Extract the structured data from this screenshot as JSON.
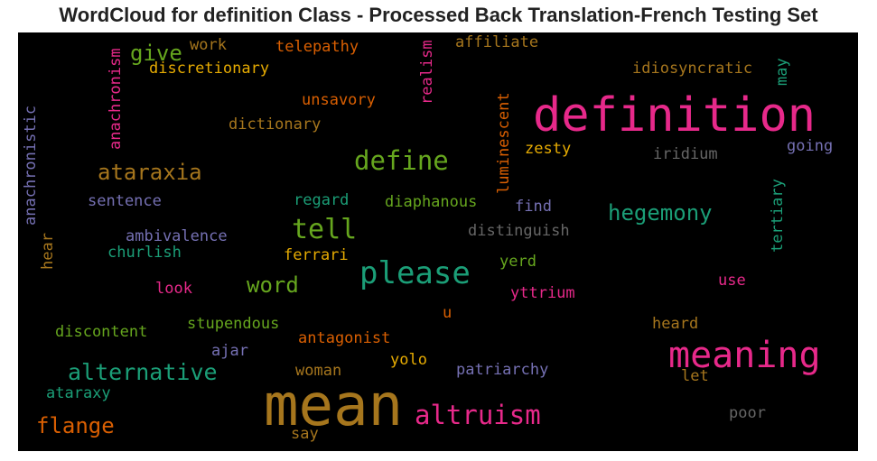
{
  "chart_data": {
    "type": "wordcloud",
    "title": "WordCloud for definition Class - Processed Back Translation-French Testing Set",
    "background": "#000000",
    "palette": "Dark2",
    "words": [
      {
        "text": "mean",
        "color": "#a6761d"
      },
      {
        "text": "definition",
        "color": "#e7298a"
      },
      {
        "text": "meaning",
        "color": "#e7298a"
      },
      {
        "text": "please",
        "color": "#1b9e77"
      },
      {
        "text": "tell",
        "color": "#66a61e"
      },
      {
        "text": "define",
        "color": "#66a61e"
      },
      {
        "text": "altruism",
        "color": "#e7298a"
      },
      {
        "text": "alternative",
        "color": "#1b9e77"
      },
      {
        "text": "ataraxia",
        "color": "#a6761d"
      },
      {
        "text": "hegemony",
        "color": "#1b9e77"
      },
      {
        "text": "flange",
        "color": "#d95f02"
      },
      {
        "text": "word",
        "color": "#66a61e"
      },
      {
        "text": "give",
        "color": "#66a61e"
      },
      {
        "text": "discretionary",
        "color": "#e6ab02"
      },
      {
        "text": "idiosyncratic",
        "color": "#a6761d"
      },
      {
        "text": "telepathy",
        "color": "#d95f02"
      },
      {
        "text": "affiliate",
        "color": "#a6761d"
      },
      {
        "text": "work",
        "color": "#a6761d"
      },
      {
        "text": "unsavory",
        "color": "#d95f02"
      },
      {
        "text": "dictionary",
        "color": "#a6761d"
      },
      {
        "text": "zesty",
        "color": "#e6ab02"
      },
      {
        "text": "iridium",
        "color": "#666666"
      },
      {
        "text": "going",
        "color": "#7570b3"
      },
      {
        "text": "sentence",
        "color": "#7570b3"
      },
      {
        "text": "regard",
        "color": "#1b9e77"
      },
      {
        "text": "diaphanous",
        "color": "#66a61e"
      },
      {
        "text": "find",
        "color": "#7570b3"
      },
      {
        "text": "distinguish",
        "color": "#666666"
      },
      {
        "text": "ambivalence",
        "color": "#7570b3"
      },
      {
        "text": "churlish",
        "color": "#1b9e77"
      },
      {
        "text": "ferrari",
        "color": "#e6ab02"
      },
      {
        "text": "yerd",
        "color": "#66a61e"
      },
      {
        "text": "look",
        "color": "#e7298a"
      },
      {
        "text": "yttrium",
        "color": "#e7298a"
      },
      {
        "text": "use",
        "color": "#e7298a"
      },
      {
        "text": "u",
        "color": "#d95f02"
      },
      {
        "text": "discontent",
        "color": "#66a61e"
      },
      {
        "text": "stupendous",
        "color": "#66a61e"
      },
      {
        "text": "heard",
        "color": "#a6761d"
      },
      {
        "text": "antagonist",
        "color": "#d95f02"
      },
      {
        "text": "ajar",
        "color": "#7570b3"
      },
      {
        "text": "yolo",
        "color": "#e6ab02"
      },
      {
        "text": "patriarchy",
        "color": "#7570b3"
      },
      {
        "text": "woman",
        "color": "#a6761d"
      },
      {
        "text": "let",
        "color": "#a6761d"
      },
      {
        "text": "ataraxy",
        "color": "#1b9e77"
      },
      {
        "text": "poor",
        "color": "#666666"
      },
      {
        "text": "say",
        "color": "#a6761d"
      },
      {
        "text": "anachronistic",
        "color": "#7570b3"
      },
      {
        "text": "anachronism",
        "color": "#e7298a"
      },
      {
        "text": "realism",
        "color": "#e7298a"
      },
      {
        "text": "luminescent",
        "color": "#d95f02"
      },
      {
        "text": "tertiary",
        "color": "#1b9e77"
      },
      {
        "text": "may",
        "color": "#1b9e77"
      },
      {
        "text": "hear",
        "color": "#a6761d"
      }
    ]
  }
}
